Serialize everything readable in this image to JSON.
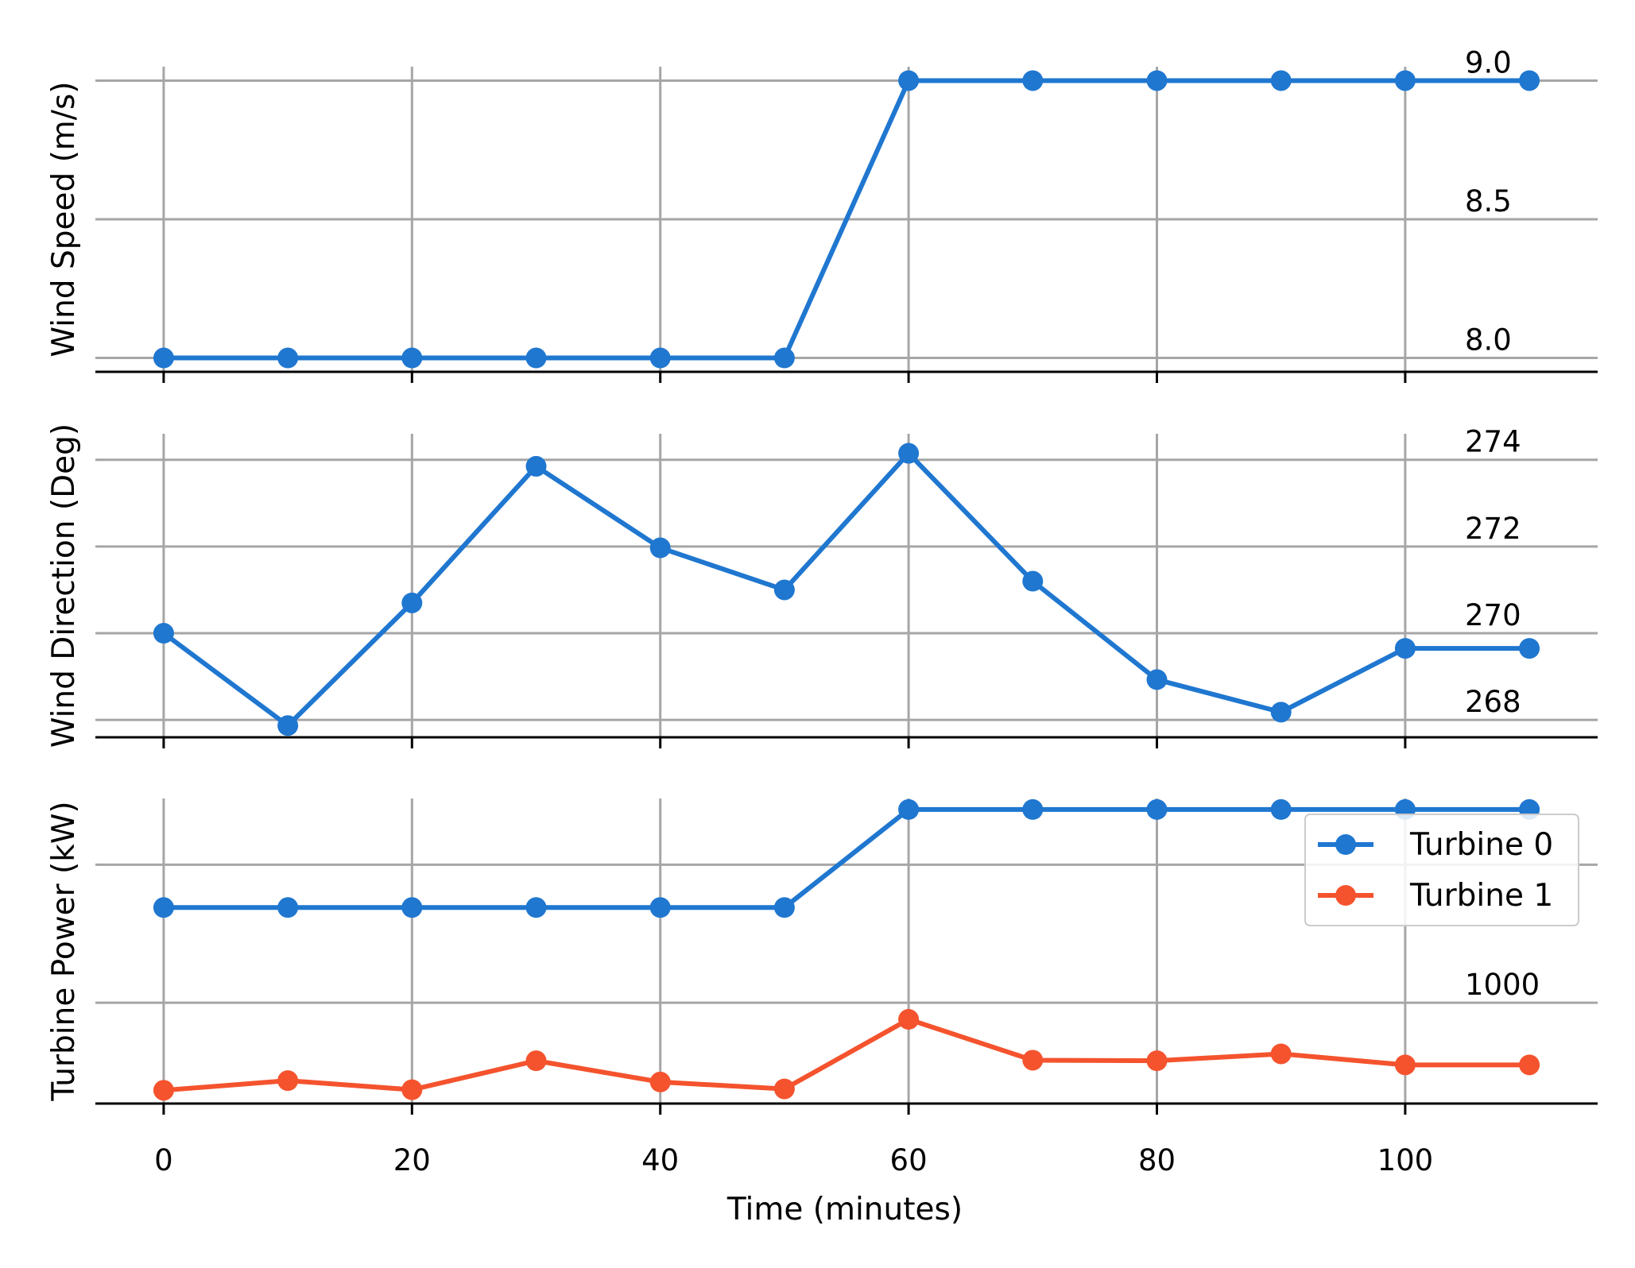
{
  "chart_data": {
    "type": "line",
    "x": [
      0,
      10,
      20,
      30,
      40,
      50,
      60,
      70,
      80,
      90,
      100,
      110
    ],
    "xlabel": "Time (minutes)",
    "xticks": [
      0,
      20,
      40,
      60,
      80,
      100
    ],
    "xtick_labels": [
      "0",
      "20",
      "40",
      "60",
      "80",
      "100"
    ],
    "xlim": [
      -5.5,
      115.5
    ],
    "grid": true,
    "panels": [
      {
        "id": "wind-speed",
        "ylabel": "Wind Speed (m/s)",
        "ylim": [
          7.95,
          9.05
        ],
        "yticks": [
          8.0,
          8.5,
          9.0
        ],
        "ytick_labels": [
          "8.0",
          "8.5",
          "9.0"
        ],
        "legend": false,
        "series": [
          {
            "color": "#1f77d0",
            "values": [
              8.0,
              8.0,
              8.0,
              8.0,
              8.0,
              8.0,
              9.0,
              9.0,
              9.0,
              9.0,
              9.0,
              9.0
            ]
          }
        ]
      },
      {
        "id": "wind-direction",
        "ylabel": "Wind Direction (Deg)",
        "ylim": [
          267.6,
          274.6
        ],
        "yticks": [
          268,
          270,
          272,
          274
        ],
        "ytick_labels": [
          "268",
          "270",
          "272",
          "274"
        ],
        "legend": false,
        "series": [
          {
            "color": "#1f77d0",
            "values": [
              270.0,
              267.87,
              270.7,
              273.85,
              271.97,
              271.0,
              274.15,
              271.2,
              268.93,
              268.18,
              269.65,
              269.65
            ]
          }
        ]
      },
      {
        "id": "turbine-power",
        "ylabel": "Turbine Power (kW)",
        "ylim": [
          635,
          1740
        ],
        "yticks": [
          1000
        ],
        "ytick_labels": [
          "1000"
        ],
        "extra_gridlines": [
          1500
        ],
        "legend": true,
        "legend_position": "upper-right",
        "series": [
          {
            "name": "Turbine 0",
            "color": "#1f77d0",
            "values": [
              1345,
              1345,
              1345,
              1345,
              1345,
              1345,
              1700,
              1700,
              1700,
              1700,
              1700,
              1700
            ]
          },
          {
            "name": "Turbine 1",
            "color": "#f4532e",
            "values": [
              683,
              718,
              685,
              790,
              713,
              688,
              940,
              792,
              790,
              815,
              775,
              775
            ]
          }
        ]
      }
    ]
  }
}
